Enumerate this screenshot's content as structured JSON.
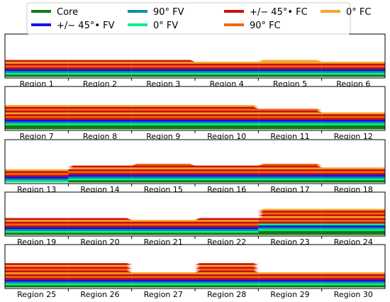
{
  "chart_data": {
    "type": "area",
    "title": "",
    "xlabel": "",
    "ylabel": "",
    "legend": {
      "placement": "top-center",
      "entries": [
        {
          "label": "Core",
          "color": "#117a11"
        },
        {
          "label": "+/− 45°• FV",
          "color": "#1212ee"
        },
        {
          "label": "90° FV",
          "color": "#0b8ea8"
        },
        {
          "label": "0° FV",
          "color": "#10ee88"
        },
        {
          "label": "+/− 45°• FC",
          "color": "#c71010"
        },
        {
          "label": "90° FC",
          "color": "#ee6a0a"
        },
        {
          "label": "0° FC",
          "color": "#f6a428"
        }
      ]
    },
    "panels": [
      {
        "regions": [
          "Region 1",
          "Region 2",
          "Region 3",
          "Region 4",
          "Region 5",
          "Region 6"
        ],
        "core": [
          1,
          1,
          1,
          1,
          1,
          1
        ],
        "fv": [
          3,
          3,
          3,
          3,
          3,
          3
        ],
        "fc": [
          5,
          5,
          5,
          4,
          4,
          4
        ],
        "extra_top": [
          0,
          0,
          0,
          0,
          1,
          0
        ]
      },
      {
        "regions": [
          "Region 7",
          "Region 8",
          "Region 9",
          "Region 10",
          "Region 11",
          "Region 12"
        ],
        "core": [
          2,
          2,
          2,
          2,
          2,
          2
        ],
        "fv": [
          3,
          3,
          3,
          3,
          3,
          3
        ],
        "fc": [
          8,
          8,
          8,
          8,
          6,
          4
        ],
        "extra_top": [
          0,
          0,
          0,
          0,
          0,
          0
        ]
      },
      {
        "regions": [
          "Region 13",
          "Region 14",
          "Region 15",
          "Region 16",
          "Region 17",
          "Region 18"
        ],
        "core": [
          0,
          1,
          1,
          1,
          1,
          1
        ],
        "fv": [
          3,
          3,
          3,
          3,
          3,
          3
        ],
        "fc": [
          4,
          5,
          6,
          5,
          6,
          4
        ],
        "extra_top": [
          0,
          0,
          0,
          0,
          0,
          0
        ]
      },
      {
        "regions": [
          "Region 19",
          "Region 20",
          "Region 21",
          "Region 22",
          "Region 23",
          "Region 24"
        ],
        "core": [
          1,
          1,
          1,
          1,
          2,
          2
        ],
        "fv": [
          3,
          3,
          3,
          3,
          4,
          4
        ],
        "fc": [
          5,
          5,
          4,
          5,
          8,
          8
        ],
        "extra_top": [
          0,
          0,
          0,
          0,
          0,
          0
        ]
      },
      {
        "regions": [
          "Region 25",
          "Region 26",
          "Region 27",
          "Region 28",
          "Region 29",
          "Region 30"
        ],
        "core": [
          1,
          1,
          1,
          1,
          1,
          1
        ],
        "fv": [
          3,
          3,
          3,
          3,
          3,
          3
        ],
        "fc": [
          9,
          9,
          4,
          9,
          4,
          4
        ],
        "extra_top": [
          0,
          0,
          0,
          0,
          0,
          0
        ]
      }
    ]
  }
}
